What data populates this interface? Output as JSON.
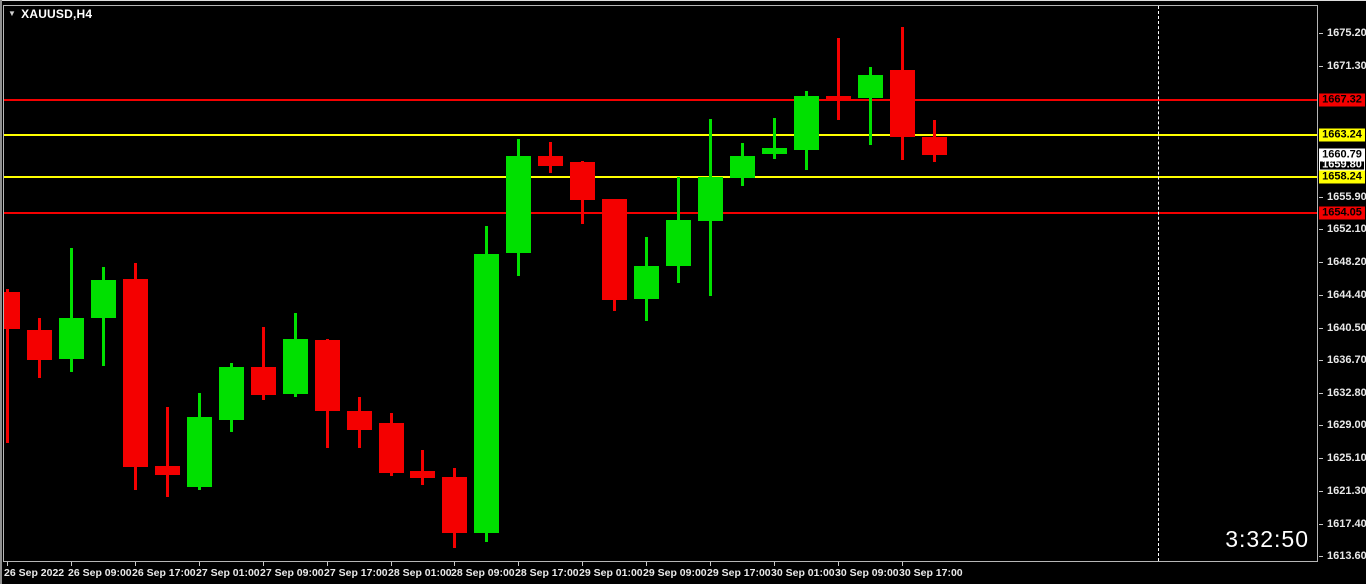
{
  "header": {
    "symbol": "XAUUSD,H4",
    "dropdown_icon": "triangle-down"
  },
  "clock": {
    "time": "3:32:50"
  },
  "colors": {
    "background": "#000000",
    "bull": "#00e000",
    "bear": "#f40000",
    "line_red": "#f40000",
    "line_yellow": "#ffff00",
    "frame": "#b6b6b6",
    "axis_text": "#e9e9e9",
    "separator": "#ffffff"
  },
  "chart_data": {
    "type": "candlestick",
    "symbol": "XAUUSD",
    "timeframe": "H4",
    "title": "XAUUSD,H4",
    "grid": false,
    "legend": "none",
    "y_axis_range": {
      "top": 1678.5,
      "bottom": 1612.9
    },
    "y_ticks": [
      1675.2,
      1671.3,
      1655.9,
      1652.1,
      1648.2,
      1644.4,
      1640.5,
      1636.7,
      1632.8,
      1629.0,
      1625.1,
      1621.3,
      1617.4,
      1613.6
    ],
    "h_lines": [
      {
        "price": 1667.32,
        "color": "red"
      },
      {
        "price": 1663.24,
        "color": "yellow"
      },
      {
        "price": 1658.24,
        "color": "yellow"
      },
      {
        "price": 1654.05,
        "color": "red"
      }
    ],
    "price_labels": [
      {
        "price": 1667.32,
        "text": "1667.32",
        "style": "red"
      },
      {
        "price": 1663.24,
        "text": "1663.24",
        "style": "yellow"
      },
      {
        "price": 1659.8,
        "text": "1659.80",
        "style": "outline"
      },
      {
        "price": 1660.79,
        "text": "1660.79",
        "style": "white"
      },
      {
        "price": 1658.24,
        "text": "1658.24",
        "style": "yellow"
      },
      {
        "price": 1654.05,
        "text": "1654.05",
        "style": "red"
      }
    ],
    "current_bid": 1660.79,
    "x_labels": [
      "26 Sep 2022",
      "26 Sep 09:00",
      "26 Sep 17:00",
      "27 Sep 01:00",
      "27 Sep 09:00",
      "27 Sep 17:00",
      "28 Sep 01:00",
      "28 Sep 09:00",
      "28 Sep 17:00",
      "29 Sep 01:00",
      "29 Sep 09:00",
      "29 Sep 17:00",
      "30 Sep 01:00",
      "30 Sep 09:00",
      "30 Sep 17:00"
    ],
    "x_label_every_n_bars": 2,
    "v_separator_bar_index": 36,
    "bars": [
      {
        "t": "26 Sep 01:00",
        "o": 1644.7,
        "h": 1645.0,
        "l": 1626.9,
        "c": 1640.3
      },
      {
        "t": "26 Sep 05:00",
        "o": 1640.2,
        "h": 1641.6,
        "l": 1634.6,
        "c": 1636.7
      },
      {
        "t": "26 Sep 09:00",
        "o": 1636.8,
        "h": 1649.9,
        "l": 1635.3,
        "c": 1641.6
      },
      {
        "t": "26 Sep 13:00",
        "o": 1641.6,
        "h": 1647.6,
        "l": 1636.0,
        "c": 1646.1
      },
      {
        "t": "26 Sep 17:00",
        "o": 1646.2,
        "h": 1648.1,
        "l": 1621.4,
        "c": 1624.1
      },
      {
        "t": "26 Sep 21:00",
        "o": 1624.2,
        "h": 1631.2,
        "l": 1620.5,
        "c": 1623.1
      },
      {
        "t": "27 Sep 01:00",
        "o": 1621.7,
        "h": 1632.8,
        "l": 1621.4,
        "c": 1630.0
      },
      {
        "t": "27 Sep 05:00",
        "o": 1629.6,
        "h": 1636.3,
        "l": 1628.2,
        "c": 1635.9
      },
      {
        "t": "27 Sep 09:00",
        "o": 1635.9,
        "h": 1640.6,
        "l": 1632.0,
        "c": 1632.6
      },
      {
        "t": "27 Sep 13:00",
        "o": 1632.7,
        "h": 1642.2,
        "l": 1632.3,
        "c": 1639.2
      },
      {
        "t": "27 Sep 17:00",
        "o": 1639.0,
        "h": 1639.2,
        "l": 1626.3,
        "c": 1630.7
      },
      {
        "t": "27 Sep 21:00",
        "o": 1630.7,
        "h": 1632.3,
        "l": 1626.3,
        "c": 1628.5
      },
      {
        "t": "28 Sep 01:00",
        "o": 1629.3,
        "h": 1630.4,
        "l": 1623.0,
        "c": 1623.4
      },
      {
        "t": "28 Sep 05:00",
        "o": 1623.6,
        "h": 1626.1,
        "l": 1622.0,
        "c": 1622.8
      },
      {
        "t": "28 Sep 09:00",
        "o": 1622.9,
        "h": 1624.0,
        "l": 1614.5,
        "c": 1616.3
      },
      {
        "t": "28 Sep 13:00",
        "o": 1616.3,
        "h": 1652.5,
        "l": 1615.2,
        "c": 1649.2
      },
      {
        "t": "28 Sep 17:00",
        "o": 1649.3,
        "h": 1662.7,
        "l": 1646.6,
        "c": 1660.7
      },
      {
        "t": "28 Sep 21:00",
        "o": 1660.7,
        "h": 1662.4,
        "l": 1658.7,
        "c": 1659.5
      },
      {
        "t": "29 Sep 01:00",
        "o": 1660.0,
        "h": 1660.1,
        "l": 1652.7,
        "c": 1655.5
      },
      {
        "t": "29 Sep 05:00",
        "o": 1655.6,
        "h": 1655.7,
        "l": 1642.5,
        "c": 1643.8
      },
      {
        "t": "29 Sep 09:00",
        "o": 1643.9,
        "h": 1651.2,
        "l": 1641.3,
        "c": 1647.8
      },
      {
        "t": "29 Sep 13:00",
        "o": 1647.8,
        "h": 1658.3,
        "l": 1645.8,
        "c": 1653.2
      },
      {
        "t": "29 Sep 17:00",
        "o": 1653.1,
        "h": 1665.1,
        "l": 1644.2,
        "c": 1658.3
      },
      {
        "t": "29 Sep 21:00",
        "o": 1658.1,
        "h": 1662.2,
        "l": 1657.2,
        "c": 1660.7
      },
      {
        "t": "30 Sep 01:00",
        "o": 1660.9,
        "h": 1665.2,
        "l": 1660.4,
        "c": 1661.6
      },
      {
        "t": "30 Sep 05:00",
        "o": 1661.4,
        "h": 1668.4,
        "l": 1659.1,
        "c": 1667.8
      },
      {
        "t": "30 Sep 09:00",
        "o": 1667.8,
        "h": 1674.6,
        "l": 1665.0,
        "c": 1667.4
      },
      {
        "t": "30 Sep 13:00",
        "o": 1667.6,
        "h": 1671.2,
        "l": 1662.0,
        "c": 1670.3
      },
      {
        "t": "30 Sep 17:00",
        "o": 1670.9,
        "h": 1675.9,
        "l": 1660.2,
        "c": 1663.0
      },
      {
        "t": "30 Sep 21:00",
        "o": 1663.0,
        "h": 1664.9,
        "l": 1660.0,
        "c": 1660.79
      }
    ]
  }
}
